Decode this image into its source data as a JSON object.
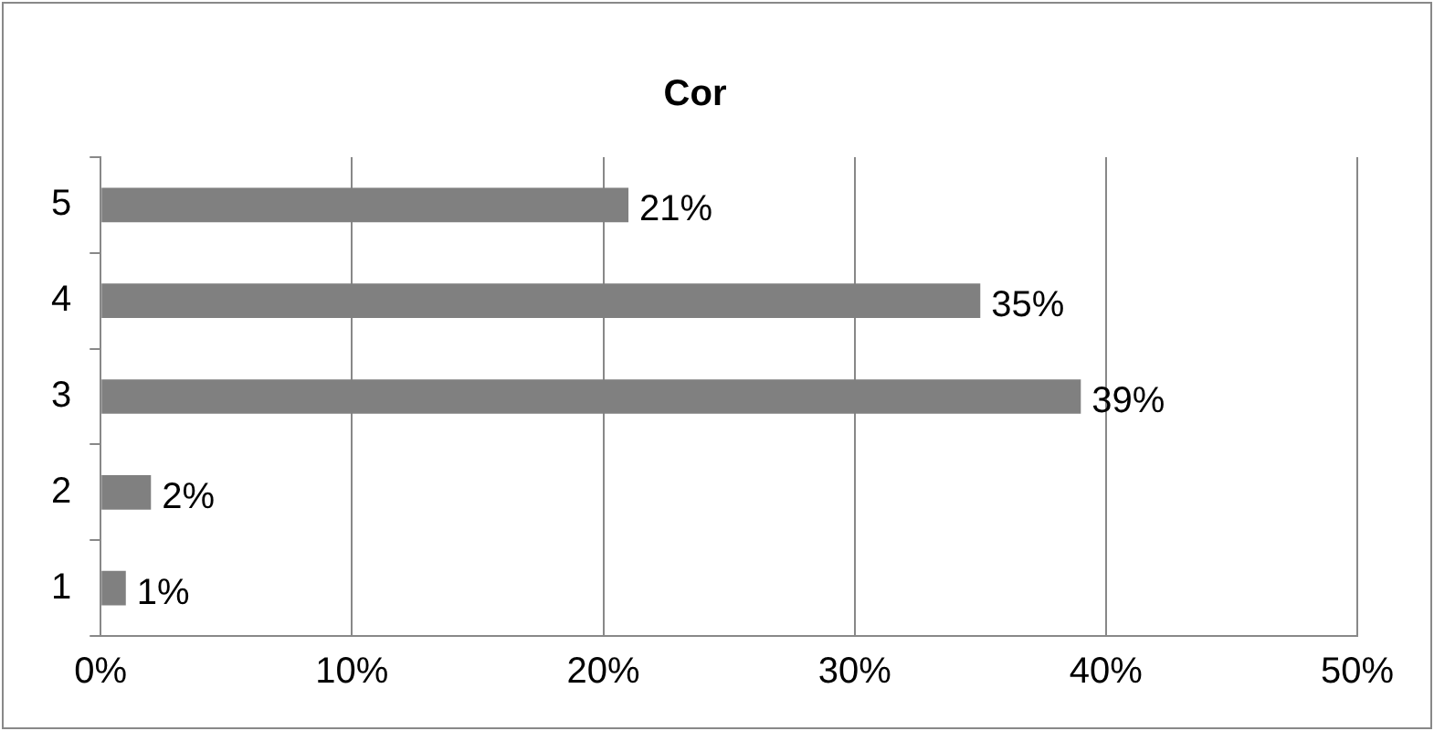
{
  "chart_data": {
    "type": "bar",
    "title": "Cor",
    "orientation": "horizontal",
    "categories": [
      "5",
      "4",
      "3",
      "2",
      "1"
    ],
    "values": [
      21,
      35,
      39,
      2,
      1
    ],
    "value_labels": [
      "21%",
      "35%",
      "39%",
      "2%",
      "1%"
    ],
    "color": "#808080",
    "xlim": [
      0,
      50
    ],
    "xticks": [
      {
        "value": 0,
        "label": "0%"
      },
      {
        "value": 10,
        "label": "10%"
      },
      {
        "value": 20,
        "label": "20%"
      },
      {
        "value": 30,
        "label": "30%"
      },
      {
        "value": 40,
        "label": "40%"
      },
      {
        "value": 50,
        "label": "50%"
      }
    ],
    "grid": "x"
  }
}
